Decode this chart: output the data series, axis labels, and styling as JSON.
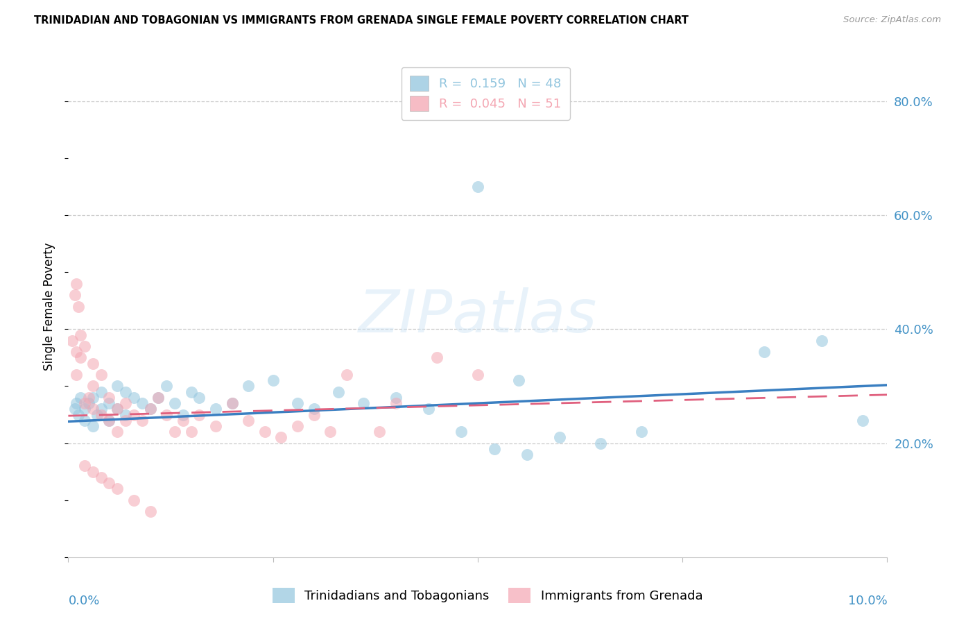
{
  "title": "TRINIDADIAN AND TOBAGONIAN VS IMMIGRANTS FROM GRENADA SINGLE FEMALE POVERTY CORRELATION CHART",
  "source": "Source: ZipAtlas.com",
  "ylabel": "Single Female Poverty",
  "right_yticklabels": [
    "20.0%",
    "40.0%",
    "60.0%",
    "80.0%"
  ],
  "right_yticks": [
    0.2,
    0.4,
    0.6,
    0.8
  ],
  "xlim": [
    0.0,
    0.1
  ],
  "ylim": [
    0.0,
    0.88
  ],
  "series1_label": "Trinidadians and Tobagonians",
  "series2_label": "Immigrants from Grenada",
  "series1_color": "#92c5de",
  "series2_color": "#f4a6b2",
  "series1_line_color": "#3a7fc1",
  "series2_line_color": "#e0607e",
  "legend_r1": "R =  0.159",
  "legend_n1": "N = 48",
  "legend_r2": "R =  0.045",
  "legend_n2": "N = 51",
  "legend_color1": "#92c5de",
  "legend_color2": "#f4a6b2",
  "watermark_text": "ZIPatlas",
  "grid_color": "#cccccc",
  "axis_label_color": "#4292c6",
  "blue_x": [
    0.0008,
    0.001,
    0.0012,
    0.0015,
    0.002,
    0.002,
    0.0025,
    0.003,
    0.003,
    0.0035,
    0.004,
    0.004,
    0.005,
    0.005,
    0.006,
    0.006,
    0.007,
    0.007,
    0.008,
    0.009,
    0.01,
    0.011,
    0.012,
    0.013,
    0.014,
    0.015,
    0.016,
    0.018,
    0.02,
    0.022,
    0.025,
    0.028,
    0.03,
    0.033,
    0.036,
    0.04,
    0.044,
    0.048,
    0.052,
    0.056,
    0.06,
    0.065,
    0.05,
    0.055,
    0.07,
    0.085,
    0.092,
    0.097
  ],
  "blue_y": [
    0.26,
    0.27,
    0.25,
    0.28,
    0.24,
    0.26,
    0.27,
    0.23,
    0.28,
    0.25,
    0.29,
    0.26,
    0.27,
    0.24,
    0.3,
    0.26,
    0.29,
    0.25,
    0.28,
    0.27,
    0.26,
    0.28,
    0.3,
    0.27,
    0.25,
    0.29,
    0.28,
    0.26,
    0.27,
    0.3,
    0.31,
    0.27,
    0.26,
    0.29,
    0.27,
    0.28,
    0.26,
    0.22,
    0.19,
    0.18,
    0.21,
    0.2,
    0.65,
    0.31,
    0.22,
    0.36,
    0.38,
    0.24
  ],
  "pink_x": [
    0.0005,
    0.001,
    0.001,
    0.0015,
    0.0015,
    0.002,
    0.002,
    0.0025,
    0.003,
    0.003,
    0.003,
    0.004,
    0.004,
    0.005,
    0.005,
    0.006,
    0.006,
    0.007,
    0.007,
    0.008,
    0.009,
    0.01,
    0.011,
    0.012,
    0.013,
    0.014,
    0.015,
    0.016,
    0.018,
    0.02,
    0.022,
    0.024,
    0.026,
    0.028,
    0.03,
    0.032,
    0.034,
    0.038,
    0.04,
    0.045,
    0.05,
    0.001,
    0.0008,
    0.0012,
    0.002,
    0.003,
    0.004,
    0.005,
    0.006,
    0.008,
    0.01
  ],
  "pink_y": [
    0.38,
    0.36,
    0.32,
    0.39,
    0.35,
    0.37,
    0.27,
    0.28,
    0.3,
    0.34,
    0.26,
    0.32,
    0.25,
    0.28,
    0.24,
    0.26,
    0.22,
    0.27,
    0.24,
    0.25,
    0.24,
    0.26,
    0.28,
    0.25,
    0.22,
    0.24,
    0.22,
    0.25,
    0.23,
    0.27,
    0.24,
    0.22,
    0.21,
    0.23,
    0.25,
    0.22,
    0.32,
    0.22,
    0.27,
    0.35,
    0.32,
    0.48,
    0.46,
    0.44,
    0.16,
    0.15,
    0.14,
    0.13,
    0.12,
    0.1,
    0.08
  ],
  "blue_trend_x0": 0.0,
  "blue_trend_y0": 0.238,
  "blue_trend_x1": 0.1,
  "blue_trend_y1": 0.302,
  "pink_trend_x0": 0.0,
  "pink_trend_y0": 0.248,
  "pink_trend_x1": 0.1,
  "pink_trend_y1": 0.285
}
